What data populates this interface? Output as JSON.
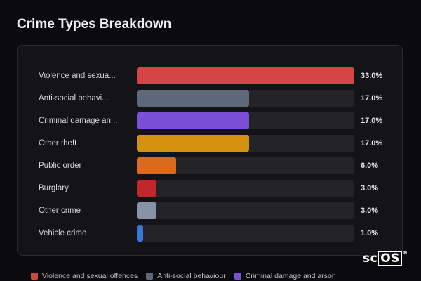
{
  "header": {
    "title": "Crime Types Breakdown"
  },
  "logo": {
    "text_a": "sc",
    "text_b": "OS",
    "mark": "®"
  },
  "chart_data": {
    "type": "bar",
    "orientation": "horizontal",
    "title": "Crime Types Breakdown",
    "xlim": [
      0,
      33
    ],
    "categories": [
      "Violence and sexua...",
      "Anti-social behavi...",
      "Criminal damage an...",
      "Other theft",
      "Public order",
      "Burglary",
      "Other crime",
      "Vehicle crime"
    ],
    "values": [
      33.0,
      17.0,
      17.0,
      17.0,
      6.0,
      3.0,
      3.0,
      1.0
    ],
    "value_labels": [
      "33.0%",
      "17.0%",
      "17.0%",
      "17.0%",
      "6.0%",
      "3.0%",
      "3.0%",
      "1.0%"
    ],
    "colors": [
      "#d64545",
      "#5f6878",
      "#7b4fd6",
      "#d4900f",
      "#dc6a1e",
      "#c0282a",
      "#8893a6",
      "#3a78d8"
    ],
    "legend": [
      {
        "label": "Violence and sexual offences",
        "color": "#d64545"
      },
      {
        "label": "Anti-social behaviour",
        "color": "#5f6878"
      },
      {
        "label": "Criminal damage and arson",
        "color": "#7b4fd6"
      }
    ],
    "legend_position": "bottom"
  }
}
